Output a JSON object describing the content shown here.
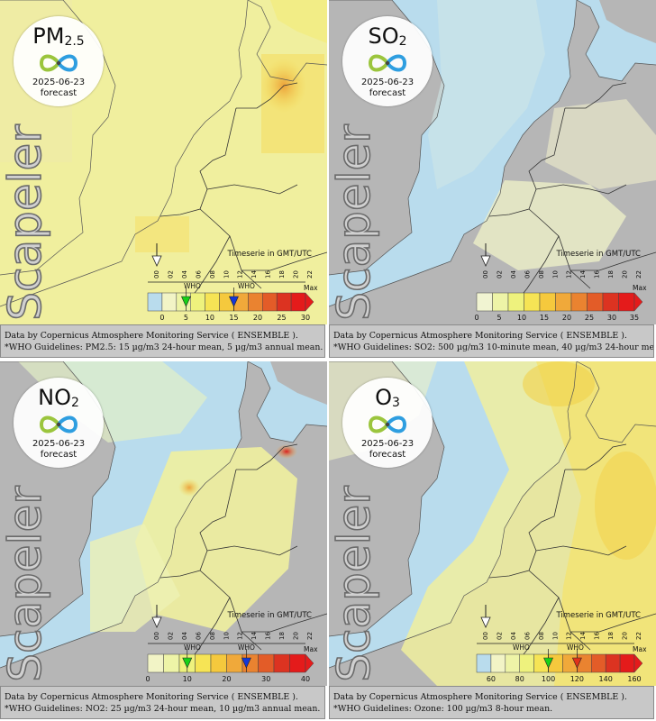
{
  "brand": {
    "watermark": "Scapeler"
  },
  "colors": {
    "sea": "#b9dced",
    "land_nodata": "#b6b6b6",
    "border": "#3a3a3a",
    "who_green": "#17d117",
    "who_blue": "#1437d8",
    "who_red": "#e0321a",
    "caption_bg": "#c8c8c8"
  },
  "common": {
    "timeserie_label": "Timeserie in GMT/UTC",
    "hours": [
      "00",
      "02",
      "04",
      "06",
      "08",
      "10",
      "12",
      "14",
      "16",
      "18",
      "20",
      "22"
    ],
    "max_label": "Max",
    "who_label": "WHO"
  },
  "panels": [
    {
      "pollutant": "PM",
      "pollutant_sub": "2.5",
      "date": "2025-06-23",
      "forecast_label": "forecast",
      "legend": {
        "ticks": [
          "0",
          "5",
          "10",
          "15",
          "20",
          "25",
          "30"
        ],
        "colors": [
          "#b9dced",
          "#f2f4c6",
          "#eef4a7",
          "#eef27d",
          "#f6e455",
          "#f5c93d",
          "#f0a93a",
          "#ea8330",
          "#e35c28",
          "#dc3321",
          "#e41b1b"
        ]
      },
      "who_markers": [
        {
          "value": 5,
          "color": "who_green"
        },
        {
          "value": 15,
          "color": "who_blue"
        }
      ],
      "caption_source": "Data by Copernicus Atmosphere Monitoring Service ( ENSEMBLE ).",
      "caption_who": "*WHO Guidelines: PM2.5: 15 µg/m3 24-hour mean, 5 µg/m3 annual mean."
    },
    {
      "pollutant": "SO",
      "pollutant_sub": "2",
      "date": "2025-06-23",
      "forecast_label": "forecast",
      "legend": {
        "ticks": [
          "0",
          "5",
          "10",
          "15",
          "20",
          "25",
          "30",
          "35"
        ],
        "colors": [
          "#f1f4d2",
          "#eef4a7",
          "#eef27d",
          "#f6e455",
          "#f5c93d",
          "#f0a93a",
          "#ea8330",
          "#e35c28",
          "#dc3321",
          "#e41b1b"
        ]
      },
      "who_markers": [],
      "caption_source": "Data by Copernicus Atmosphere Monitoring Service ( ENSEMBLE ).",
      "caption_who": "*WHO Guidelines: SO2: 500 µg/m3 10-minute mean, 40 µg/m3 24-hour mean."
    },
    {
      "pollutant": "NO",
      "pollutant_sub": "2",
      "date": "2025-06-23",
      "forecast_label": "forecast",
      "legend": {
        "ticks": [
          "0",
          "10",
          "20",
          "30",
          "40"
        ],
        "colors": [
          "#f2f4c6",
          "#eef4a7",
          "#eef27d",
          "#f6e455",
          "#f5c93d",
          "#f0a93a",
          "#ea8330",
          "#e35c28",
          "#dc3321",
          "#e41b1b"
        ]
      },
      "who_markers": [
        {
          "value": 10,
          "color": "who_green"
        },
        {
          "value": 25,
          "color": "who_blue"
        }
      ],
      "caption_source": "Data by Copernicus Atmosphere Monitoring Service ( ENSEMBLE ).",
      "caption_who": "*WHO Guidelines: NO2: 25 µg/m3 24-hour mean, 10 µg/m3 annual mean."
    },
    {
      "pollutant": "O",
      "pollutant_sub": "3",
      "date": "2025-06-23",
      "forecast_label": "forecast",
      "legend": {
        "ticks": [
          "60",
          "80",
          "100",
          "120",
          "140",
          "160"
        ],
        "colors": [
          "#b9dced",
          "#f2f4c6",
          "#eef4a7",
          "#eef27d",
          "#f6e455",
          "#f5c93d",
          "#f0a93a",
          "#ea8330",
          "#e35c28",
          "#dc3321",
          "#e41b1b"
        ]
      },
      "who_markers": [
        {
          "value": 100,
          "color": "who_green"
        },
        {
          "value": 120,
          "color": "who_red"
        }
      ],
      "caption_source": "Data by Copernicus Atmosphere Monitoring Service ( ENSEMBLE ).",
      "caption_who": "*WHO Guidelines: Ozone: 100 µg/m3 8-hour mean."
    }
  ]
}
